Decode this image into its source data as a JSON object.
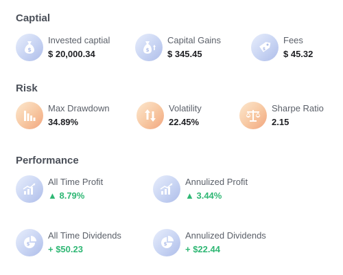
{
  "capital": {
    "title": "Captial",
    "items": [
      {
        "label": "Invested captial",
        "value": "$ 20,000.34",
        "icon": "money-bag-icon"
      },
      {
        "label": "Capital Gains",
        "value": "$ 345.45",
        "icon": "money-bag-up-icon"
      },
      {
        "label": "Fees",
        "value": "$ 45.32",
        "icon": "price-tag-icon"
      }
    ]
  },
  "risk": {
    "title": "Risk",
    "items": [
      {
        "label": "Max Drawdown",
        "value": "34.89%",
        "icon": "drawdown-chart-icon"
      },
      {
        "label": "Volatility",
        "value": "22.45%",
        "icon": "up-down-arrows-icon"
      },
      {
        "label": "Sharpe Ratio",
        "value": "2.15",
        "icon": "balance-scale-icon"
      }
    ]
  },
  "performance": {
    "title": "Performance",
    "items": [
      {
        "label": "All Time Profit",
        "value": "▲ 8.79%",
        "icon": "growth-chart-icon"
      },
      {
        "label": "Annulized Profit",
        "value": "▲ 3.44%",
        "icon": "growth-chart-icon"
      },
      {
        "label": "All Time Dividends",
        "value": "+ $50.23",
        "icon": "dividend-pie-icon"
      },
      {
        "label": "Annulized Dividends",
        "value": "+ $22.44",
        "icon": "dividend-pie-icon"
      }
    ]
  },
  "colors": {
    "positive": "#2fb774",
    "icon_blue": "#aebde9",
    "icon_orange": "#f2a57e"
  }
}
